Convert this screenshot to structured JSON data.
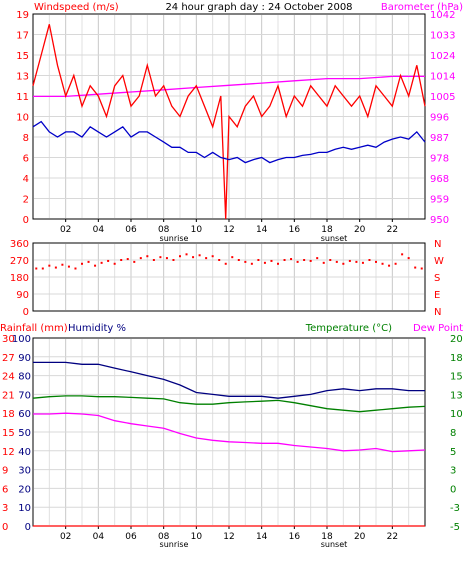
{
  "colors": {
    "background": "#ffffff",
    "frame": "#000000",
    "grid": "#c0c0c0",
    "wind_speed": "#ff0000",
    "wind_avg": "#0000c8",
    "barometer": "#ff00ff",
    "wind_dir": "#ff0000",
    "humidity": "#000080",
    "temperature": "#008000",
    "dew_point": "#ff00ff",
    "rainfall": "#ff0000",
    "rain_label": "#ff0000",
    "baro_label": "#ff00ff",
    "temp_label": "#008000",
    "dew_label": "#ff00ff",
    "hum_label": "#000080"
  },
  "header": {
    "windspeed_label": "Windspeed (m/s)",
    "title": "24 hour graph day : 24 October 2008",
    "barometer_label": "Barometer (hPa)"
  },
  "bottom_header": {
    "rainfall_label": "Rainfall (mm)",
    "humidity_label": "Humidity %",
    "temperature_label": "Temperature (°C)",
    "dewpoint_label": "Dew Point"
  },
  "x_axis": {
    "ticks": [
      "02",
      "04",
      "06",
      "08",
      "10",
      "12",
      "14",
      "16",
      "18",
      "20",
      "22"
    ],
    "sunrise_label": "sunrise",
    "sunset_label": "sunset"
  },
  "chart_data": [
    {
      "type": "line",
      "title": "24 hour graph day : 24 October 2008",
      "x_range_hours": [
        0,
        24
      ],
      "left_axis": {
        "label": "Windspeed (m/s)",
        "range": [
          0,
          20
        ],
        "ticks": [
          "19",
          "17",
          "15",
          "13",
          "11",
          "10",
          "8",
          "6",
          "4",
          "2",
          "0"
        ]
      },
      "right_axis": {
        "label": "Barometer (hPa)",
        "range": [
          950,
          1042
        ],
        "ticks": [
          "1042",
          "1033",
          "1024",
          "1014",
          "1005",
          "996",
          "987",
          "978",
          "968",
          "959",
          "950"
        ]
      },
      "grid": true,
      "series": [
        {
          "name": "Windspeed",
          "axis": "left",
          "x": [
            0.0,
            0.5,
            1.0,
            1.5,
            2.0,
            2.5,
            3.0,
            3.5,
            4.0,
            4.5,
            5.0,
            5.5,
            6.0,
            6.5,
            7.0,
            7.5,
            8.0,
            8.5,
            9.0,
            9.5,
            10.0,
            10.5,
            11.0,
            11.5,
            11.8,
            12.0,
            12.5,
            13.0,
            13.5,
            14.0,
            14.5,
            15.0,
            15.5,
            16.0,
            16.5,
            17.0,
            17.5,
            18.0,
            18.5,
            19.0,
            19.5,
            20.0,
            20.5,
            21.0,
            21.5,
            22.0,
            22.5,
            23.0,
            23.5,
            24.0
          ],
          "values": [
            13,
            16,
            19,
            15,
            12,
            14,
            11,
            13,
            12,
            10,
            13,
            14,
            11,
            12,
            15,
            12,
            13,
            11,
            10,
            12,
            13,
            11,
            9,
            12,
            0,
            10,
            9,
            11,
            12,
            10,
            11,
            13,
            10,
            12,
            11,
            13,
            12,
            11,
            13,
            12,
            11,
            12,
            10,
            13,
            12,
            11,
            14,
            12,
            15,
            11
          ]
        },
        {
          "name": "Average windspeed",
          "axis": "left",
          "x": [
            0.0,
            0.5,
            1.0,
            1.5,
            2.0,
            2.5,
            3.0,
            3.5,
            4.0,
            4.5,
            5.0,
            5.5,
            6.0,
            6.5,
            7.0,
            7.5,
            8.0,
            8.5,
            9.0,
            9.5,
            10.0,
            10.5,
            11.0,
            11.5,
            12.0,
            12.5,
            13.0,
            13.5,
            14.0,
            14.5,
            15.0,
            15.5,
            16.0,
            16.5,
            17.0,
            17.5,
            18.0,
            18.5,
            19.0,
            19.5,
            20.0,
            20.5,
            21.0,
            21.5,
            22.0,
            22.5,
            23.0,
            23.5,
            24.0
          ],
          "values": [
            9,
            9.5,
            8.5,
            8,
            8.5,
            8.5,
            8,
            9,
            8.5,
            8,
            8.5,
            9,
            8,
            8.5,
            8.5,
            8,
            7.5,
            7,
            7,
            6.5,
            6.5,
            6,
            6.5,
            6,
            5.8,
            6,
            5.5,
            5.8,
            6,
            5.5,
            5.8,
            6,
            6,
            6.2,
            6.3,
            6.5,
            6.5,
            6.8,
            7,
            6.8,
            7,
            7.2,
            7,
            7.5,
            7.8,
            8,
            7.8,
            8.5,
            7.5
          ]
        },
        {
          "name": "Barometer",
          "axis": "right",
          "x": [
            0,
            2,
            4,
            6,
            8,
            10,
            12,
            14,
            16,
            18,
            20,
            22,
            24
          ],
          "values": [
            1005,
            1005,
            1006,
            1007,
            1008,
            1009,
            1010,
            1011,
            1012,
            1013,
            1013,
            1014,
            1014
          ]
        }
      ]
    },
    {
      "type": "scatter",
      "title": "",
      "x_range_hours": [
        0,
        24
      ],
      "left_axis": {
        "label": "",
        "range": [
          0,
          360
        ],
        "ticks": [
          "360",
          "270",
          "180",
          "90",
          "0"
        ]
      },
      "right_axis": {
        "label": "",
        "ticks": [
          "N",
          "W",
          "S",
          "E",
          "N"
        ]
      },
      "grid": true,
      "series": [
        {
          "name": "",
          "x": [
            0.2,
            0.6,
            1.0,
            1.4,
            1.8,
            2.2,
            2.6,
            3.0,
            3.4,
            3.8,
            4.2,
            4.6,
            5.0,
            5.4,
            5.8,
            6.2,
            6.6,
            7.0,
            7.4,
            7.8,
            8.2,
            8.6,
            9.0,
            9.4,
            9.8,
            10.2,
            10.6,
            11.0,
            11.4,
            11.8,
            12.2,
            12.6,
            13.0,
            13.4,
            13.8,
            14.2,
            14.6,
            15.0,
            15.4,
            15.8,
            16.2,
            16.6,
            17.0,
            17.4,
            17.8,
            18.2,
            18.6,
            19.0,
            19.4,
            19.8,
            20.2,
            20.6,
            21.0,
            21.4,
            21.8,
            22.2,
            22.6,
            23.0,
            23.4,
            23.8
          ],
          "values": [
            225,
            225,
            240,
            230,
            245,
            235,
            225,
            250,
            260,
            240,
            255,
            265,
            250,
            270,
            275,
            260,
            280,
            290,
            270,
            285,
            280,
            270,
            290,
            300,
            285,
            295,
            280,
            290,
            270,
            250,
            285,
            270,
            260,
            250,
            270,
            255,
            265,
            250,
            270,
            275,
            260,
            270,
            265,
            280,
            255,
            270,
            260,
            250,
            265,
            260,
            255,
            270,
            260,
            250,
            240,
            250,
            300,
            280,
            230,
            225
          ]
        }
      ]
    },
    {
      "type": "line",
      "title": "",
      "x_range_hours": [
        0,
        24
      ],
      "left_axis": {
        "label": "Humidity %",
        "range": [
          0,
          100
        ],
        "ticks": [
          "100",
          "90",
          "80",
          "70",
          "60",
          "50",
          "40",
          "30",
          "20",
          "10",
          "0"
        ]
      },
      "left_axis_2": {
        "label": "Rainfall (mm)",
        "ticks": [
          "30",
          "27",
          "24",
          "21",
          "18",
          "15",
          "12",
          "9",
          "6",
          "3",
          "0"
        ]
      },
      "right_axis": {
        "label": "Temperature (°C)",
        "range": [
          -5,
          20
        ],
        "ticks": [
          "20",
          "18",
          "15",
          "13",
          "10",
          "8",
          "5",
          "3",
          "0",
          "-3",
          "-5"
        ]
      },
      "grid": true,
      "series": [
        {
          "name": "Humidity %",
          "axis": "left",
          "x": [
            0,
            1,
            2,
            3,
            4,
            5,
            6,
            7,
            8,
            9,
            10,
            11,
            12,
            13,
            14,
            15,
            16,
            17,
            18,
            19,
            20,
            21,
            22,
            23,
            24
          ],
          "values": [
            87,
            87,
            87,
            86,
            86,
            84,
            82,
            80,
            78,
            75,
            71,
            70,
            69,
            69,
            69,
            68,
            69,
            70,
            72,
            73,
            72,
            73,
            73,
            72,
            72
          ]
        },
        {
          "name": "Temperature",
          "axis": "right",
          "x": [
            0,
            1,
            2,
            3,
            4,
            5,
            6,
            7,
            8,
            9,
            10,
            11,
            12,
            13,
            14,
            15,
            16,
            17,
            18,
            19,
            20,
            21,
            22,
            23,
            24
          ],
          "values": [
            12,
            12.2,
            12.3,
            12.3,
            12.2,
            12.2,
            12.1,
            12,
            11.9,
            11.4,
            11.2,
            11.2,
            11.4,
            11.5,
            11.6,
            11.7,
            11.4,
            11.0,
            10.6,
            10.4,
            10.2,
            10.4,
            10.6,
            10.8,
            10.9
          ]
        },
        {
          "name": "Dew Point",
          "axis": "right",
          "x": [
            0,
            1,
            2,
            3,
            4,
            5,
            6,
            7,
            8,
            9,
            10,
            11,
            12,
            13,
            14,
            15,
            16,
            17,
            18,
            19,
            20,
            21,
            22,
            23,
            24
          ],
          "values": [
            9.9,
            9.9,
            10,
            9.9,
            9.7,
            9,
            8.6,
            8.3,
            8,
            7.3,
            6.7,
            6.4,
            6.2,
            6.1,
            6,
            6,
            5.7,
            5.5,
            5.3,
            5.0,
            5.1,
            5.3,
            4.9,
            5.0,
            5.1
          ]
        },
        {
          "name": "Rainfall",
          "axis": "left",
          "x": [
            0,
            24
          ],
          "values": [
            0,
            0
          ]
        }
      ]
    }
  ]
}
